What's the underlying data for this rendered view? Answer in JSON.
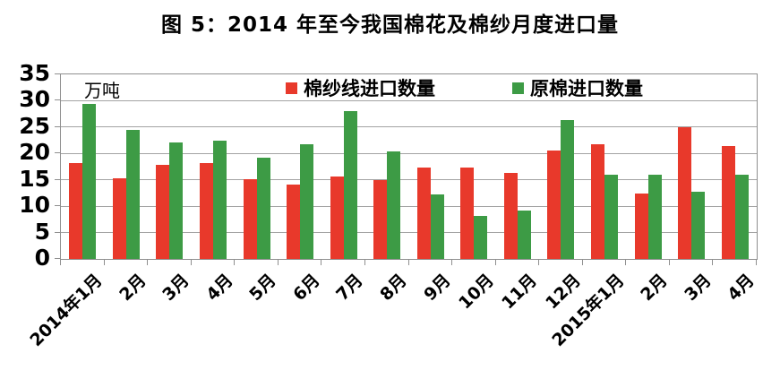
{
  "title": "图 5：2014 年至今我国棉花及棉纱月度进口量",
  "chart_data": {
    "type": "bar",
    "title": "图 5：2014 年至今我国棉花及棉纱月度进口量",
    "unit_label": "万吨",
    "xlabel": "",
    "ylabel": "万吨",
    "ylim": [
      0,
      35
    ],
    "yticks": [
      0,
      5,
      10,
      15,
      20,
      25,
      30,
      35
    ],
    "grid": true,
    "legend_position": "top-center-inside",
    "categories": [
      "2014年1月",
      "2月",
      "3月",
      "4月",
      "5月",
      "6月",
      "7月",
      "8月",
      "9月",
      "10月",
      "11月",
      "12月",
      "2015年1月",
      "2月",
      "3月",
      "4月"
    ],
    "series": [
      {
        "name": "棉纱线进口数量",
        "color": "#e8392b",
        "values": [
          18.1,
          15.3,
          17.8,
          18.1,
          15.2,
          14.1,
          15.6,
          15.0,
          17.4,
          17.3,
          16.3,
          20.5,
          21.7,
          12.4,
          24.9,
          21.4
        ]
      },
      {
        "name": "原棉进口数量",
        "color": "#3d9b45",
        "values": [
          29.4,
          24.5,
          22.1,
          22.4,
          19.2,
          21.7,
          28.1,
          20.4,
          12.2,
          8.2,
          9.2,
          26.3,
          16.0,
          15.9,
          12.7,
          16.0
        ]
      }
    ]
  },
  "colors": {
    "yarn_red": "#e8392b",
    "cotton_green": "#3d9b45",
    "gridline_gray": "#a3a3a3",
    "axis_gray": "#8f8f8f",
    "text_black": "#000000"
  }
}
